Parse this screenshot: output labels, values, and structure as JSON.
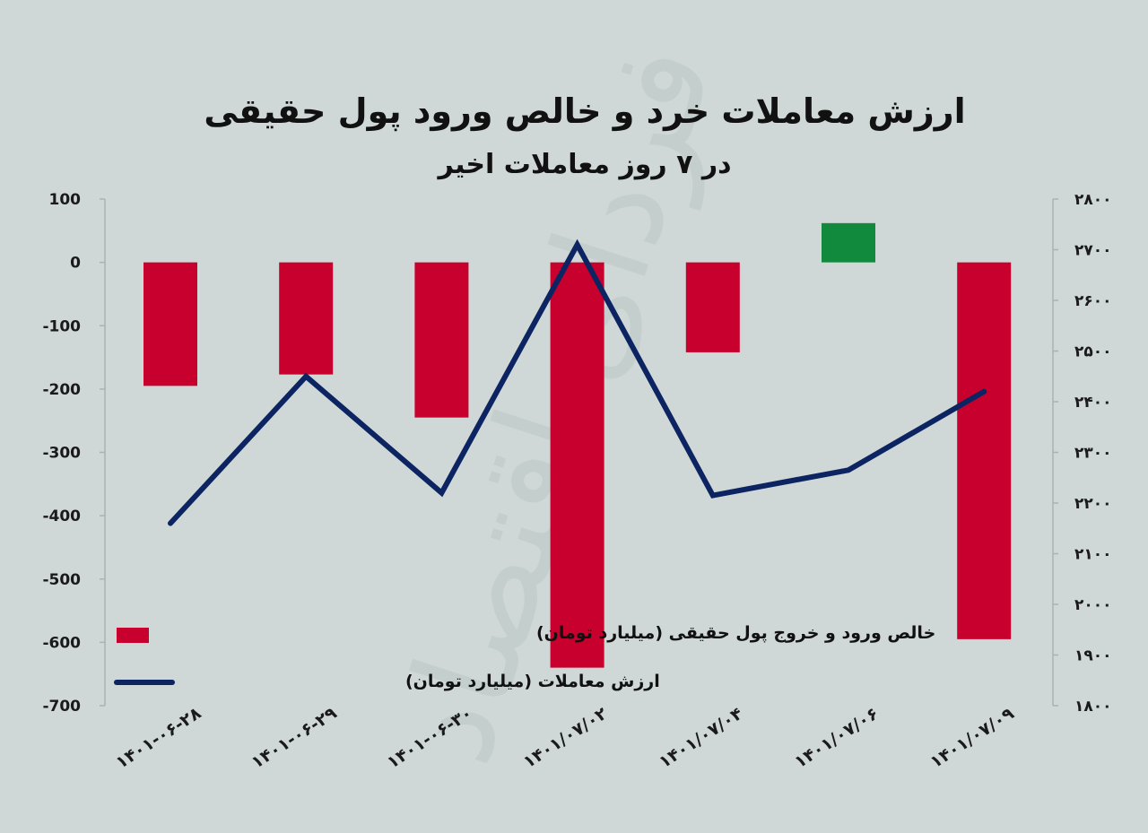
{
  "chart_data": {
    "type": "bar",
    "title": "ارزش معاملات خرد و خالص ورود پول حقیقی",
    "subtitle": "در ۷ روز معاملات اخیر",
    "categories": [
      "۱۴۰۱-۰۶-۲۸",
      "۱۴۰۱-۰۶-۲۹",
      "۱۴۰۱-۰۶-۳۰",
      "۱۴۰۱/۰۷/۰۲",
      "۱۴۰۱/۰۷/۰۴",
      "۱۴۰۱/۰۷/۰۶",
      "۱۴۰۱/۰۷/۰۹"
    ],
    "series": [
      {
        "name": "خالص ورود و خروج پول حقیقی (میلیارد تومان)",
        "type": "bar",
        "axis": "left",
        "values": [
          -195,
          -177,
          -245,
          -640,
          -142,
          62,
          -595
        ],
        "colors": [
          "#c8002e",
          "#c8002e",
          "#c8002e",
          "#c8002e",
          "#c8002e",
          "#118a3e",
          "#c8002e"
        ]
      },
      {
        "name": "ارزش معاملات (میلیارد تومان)",
        "type": "line",
        "axis": "right",
        "values": [
          2160,
          2450,
          2220,
          2710,
          2215,
          2265,
          2420
        ],
        "color": "#0c2461"
      }
    ],
    "y_left": {
      "ticks": [
        100,
        0,
        -100,
        -200,
        -300,
        -400,
        -500,
        -600,
        -700
      ],
      "tick_labels": [
        "100",
        "0",
        "-100",
        "-200",
        "-300",
        "-400",
        "-500",
        "-600",
        "-700"
      ],
      "ylim": [
        -700,
        100
      ]
    },
    "y_right": {
      "ticks": [
        2800,
        2700,
        2600,
        2500,
        2400,
        2300,
        2200,
        2100,
        2000,
        1900,
        1800
      ],
      "tick_labels": [
        "۲۸۰۰",
        "۲۷۰۰",
        "۲۶۰۰",
        "۲۵۰۰",
        "۲۴۰۰",
        "۲۳۰۰",
        "۲۲۰۰",
        "۲۱۰۰",
        "۲۰۰۰",
        "۱۹۰۰",
        "۱۸۰۰"
      ],
      "ylim": [
        1800,
        2800
      ]
    },
    "grid": false,
    "legend_position": "bottom-left",
    "watermark": "فردای اقتصاد"
  }
}
